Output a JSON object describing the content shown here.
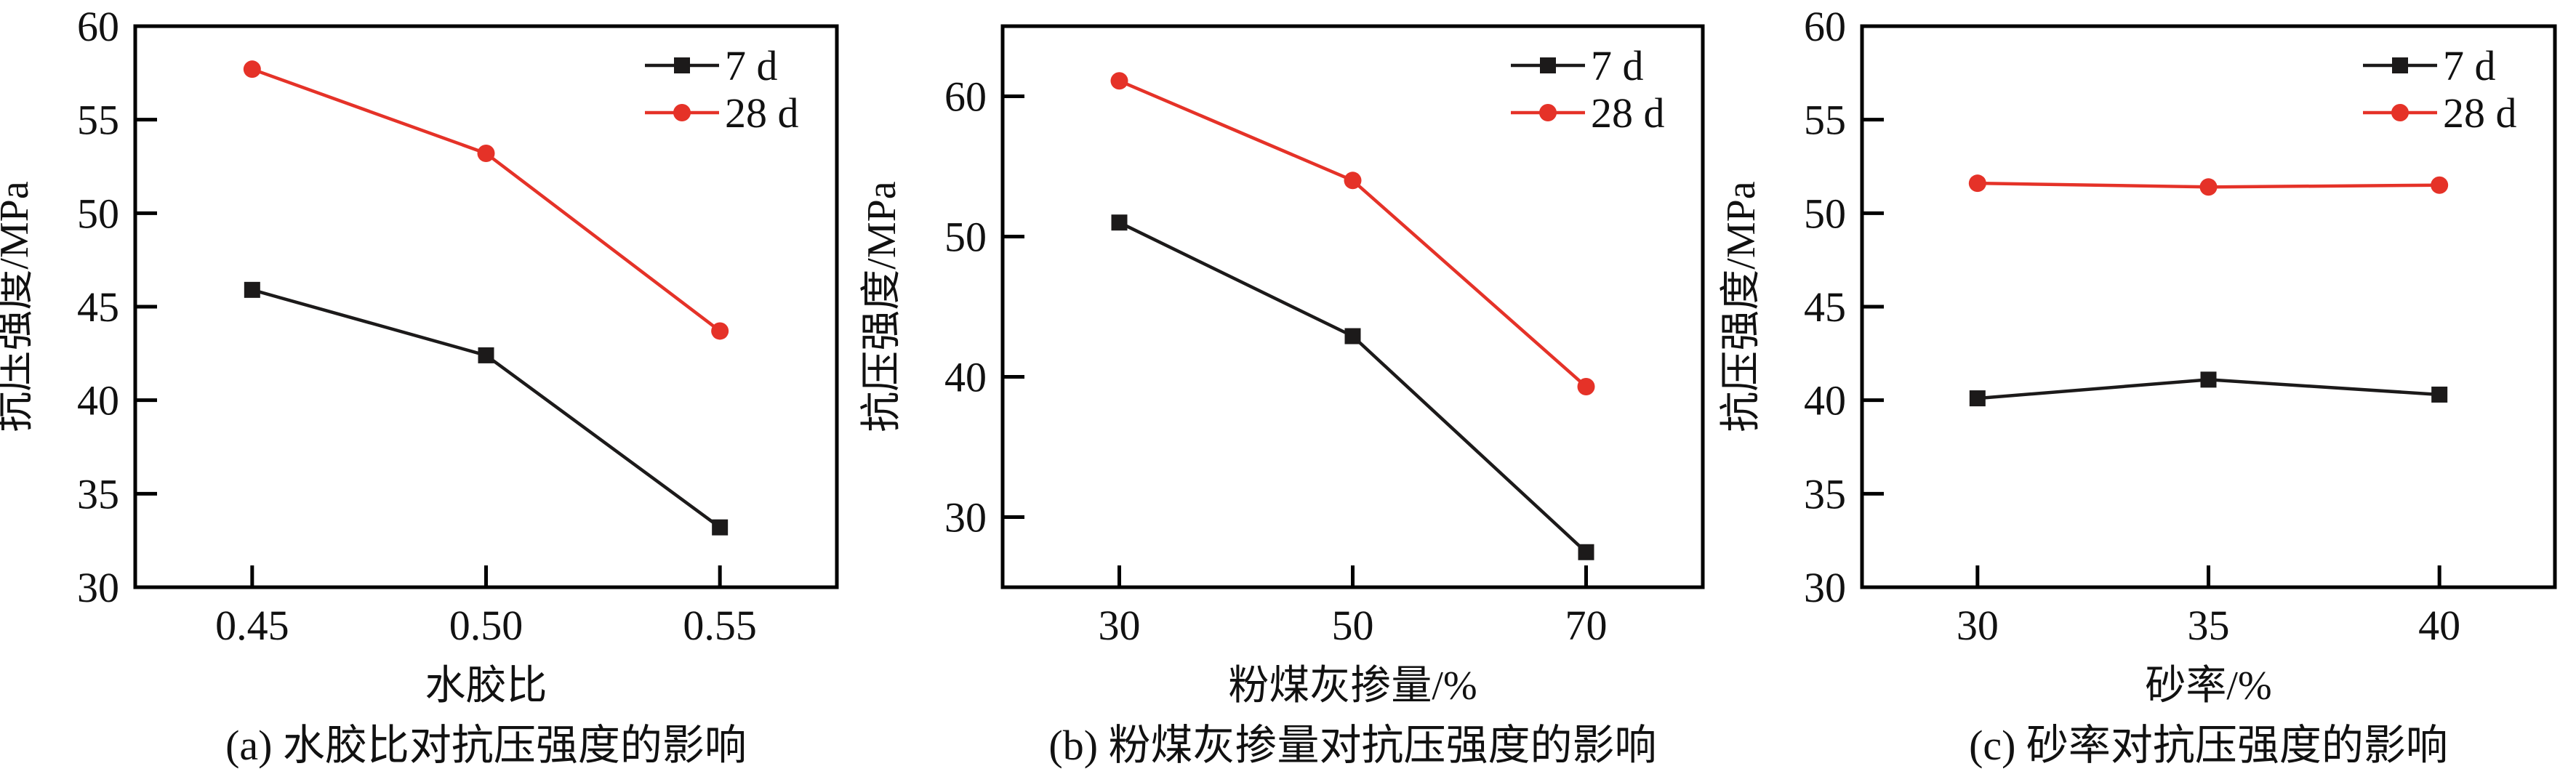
{
  "colors": {
    "series_7d": "#1c1a1a",
    "series_28d": "#e53228",
    "axis": "#000000"
  },
  "chart_data": [
    {
      "type": "line",
      "caption": "(a) 水胶比对抗压强度的影响",
      "xlabel": "水胶比",
      "ylabel": "抗压强度/MPa",
      "x": [
        0.45,
        0.5,
        0.55
      ],
      "x_tick_labels": [
        "0.45",
        "0.50",
        "0.55"
      ],
      "xlim": [
        0.425,
        0.575
      ],
      "ylim": [
        30,
        60
      ],
      "y_ticks": [
        30,
        35,
        40,
        45,
        50,
        55,
        60
      ],
      "grid": false,
      "legend_position": "top-right",
      "series": [
        {
          "name": "7 d",
          "marker": "square",
          "values": [
            45.9,
            42.4,
            33.2
          ]
        },
        {
          "name": "28 d",
          "marker": "circle",
          "values": [
            57.7,
            53.2,
            43.7
          ]
        }
      ]
    },
    {
      "type": "line",
      "caption": "(b) 粉煤灰掺量对抗压强度的影响",
      "xlabel": "粉煤灰掺量/%",
      "ylabel": "抗压强度/MPa",
      "x": [
        30,
        50,
        70
      ],
      "x_tick_labels": [
        "30",
        "50",
        "70"
      ],
      "xlim": [
        20,
        80
      ],
      "ylim": [
        25,
        65
      ],
      "y_ticks": [
        30,
        40,
        50,
        60
      ],
      "grid": false,
      "legend_position": "top-right",
      "series": [
        {
          "name": "7 d",
          "marker": "square",
          "values": [
            51.0,
            42.9,
            27.5
          ]
        },
        {
          "name": "28 d",
          "marker": "circle",
          "values": [
            61.1,
            54.0,
            39.3
          ]
        }
      ]
    },
    {
      "type": "line",
      "caption": "(c) 砂率对抗压强度的影响",
      "xlabel": "砂率/%",
      "ylabel": "抗压强度/MPa",
      "x": [
        30,
        35,
        40
      ],
      "x_tick_labels": [
        "30",
        "35",
        "40"
      ],
      "xlim": [
        27.5,
        42.5
      ],
      "ylim": [
        30,
        60
      ],
      "y_ticks": [
        30,
        35,
        40,
        45,
        50,
        55,
        60
      ],
      "grid": false,
      "legend_position": "top-right",
      "series": [
        {
          "name": "7 d",
          "marker": "square",
          "values": [
            40.1,
            41.1,
            40.3
          ]
        },
        {
          "name": "28 d",
          "marker": "circle",
          "values": [
            51.6,
            51.4,
            51.5
          ]
        }
      ]
    }
  ]
}
